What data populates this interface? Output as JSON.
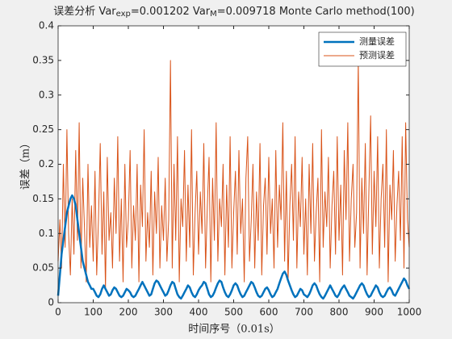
{
  "chart_data": {
    "type": "line",
    "title_parts": [
      "误差分析 Var",
      "exp",
      "=0.001202 Var",
      "M",
      "=0.009718 Monte Carlo method(100)"
    ],
    "xlabel": "时间序号（0.01s）",
    "ylabel": "误差（m）",
    "xlim": [
      0,
      1000
    ],
    "xticks": [
      0,
      100,
      200,
      300,
      400,
      500,
      600,
      700,
      800,
      900,
      1000
    ],
    "ylim": [
      0,
      0.4
    ],
    "yticks": [
      0,
      0.05,
      0.1,
      0.15,
      0.2,
      0.25,
      0.3,
      0.35,
      0.4
    ],
    "grid": false,
    "legend": "northeast",
    "x": [
      0,
      5,
      10,
      15,
      20,
      25,
      30,
      35,
      40,
      45,
      50,
      55,
      60,
      65,
      70,
      75,
      80,
      85,
      90,
      95,
      100,
      105,
      110,
      115,
      120,
      125,
      130,
      135,
      140,
      145,
      150,
      155,
      160,
      165,
      170,
      175,
      180,
      185,
      190,
      195,
      200,
      205,
      210,
      215,
      220,
      225,
      230,
      235,
      240,
      245,
      250,
      255,
      260,
      265,
      270,
      275,
      280,
      285,
      290,
      295,
      300,
      305,
      310,
      315,
      320,
      325,
      330,
      335,
      340,
      345,
      350,
      355,
      360,
      365,
      370,
      375,
      380,
      385,
      390,
      395,
      400,
      405,
      410,
      415,
      420,
      425,
      430,
      435,
      440,
      445,
      450,
      455,
      460,
      465,
      470,
      475,
      480,
      485,
      490,
      495,
      500,
      505,
      510,
      515,
      520,
      525,
      530,
      535,
      540,
      545,
      550,
      555,
      560,
      565,
      570,
      575,
      580,
      585,
      590,
      595,
      600,
      605,
      610,
      615,
      620,
      625,
      630,
      635,
      640,
      645,
      650,
      655,
      660,
      665,
      670,
      675,
      680,
      685,
      690,
      695,
      700,
      705,
      710,
      715,
      720,
      725,
      730,
      735,
      740,
      745,
      750,
      755,
      760,
      765,
      770,
      775,
      780,
      785,
      790,
      795,
      800,
      805,
      810,
      815,
      820,
      825,
      830,
      835,
      840,
      845,
      850,
      855,
      860,
      865,
      870,
      875,
      880,
      885,
      890,
      895,
      900,
      905,
      910,
      915,
      920,
      925,
      930,
      935,
      940,
      945,
      950,
      955,
      960,
      965,
      970,
      975,
      980,
      985,
      990,
      995,
      1000
    ],
    "series": [
      {
        "name": "测量误差",
        "color": "#0072BD",
        "width": 2.5,
        "values": [
          0.01,
          0.04,
          0.07,
          0.09,
          0.11,
          0.13,
          0.14,
          0.15,
          0.155,
          0.15,
          0.14,
          0.12,
          0.1,
          0.08,
          0.06,
          0.05,
          0.04,
          0.03,
          0.025,
          0.02,
          0.02,
          0.015,
          0.01,
          0.008,
          0.012,
          0.02,
          0.025,
          0.02,
          0.015,
          0.01,
          0.012,
          0.018,
          0.022,
          0.02,
          0.015,
          0.01,
          0.008,
          0.01,
          0.015,
          0.02,
          0.018,
          0.015,
          0.01,
          0.008,
          0.01,
          0.015,
          0.02,
          0.025,
          0.03,
          0.025,
          0.02,
          0.015,
          0.01,
          0.012,
          0.02,
          0.028,
          0.032,
          0.03,
          0.025,
          0.02,
          0.015,
          0.01,
          0.012,
          0.018,
          0.025,
          0.03,
          0.028,
          0.02,
          0.012,
          0.008,
          0.006,
          0.01,
          0.015,
          0.02,
          0.025,
          0.022,
          0.015,
          0.01,
          0.008,
          0.012,
          0.018,
          0.022,
          0.025,
          0.03,
          0.028,
          0.02,
          0.012,
          0.008,
          0.01,
          0.015,
          0.022,
          0.028,
          0.032,
          0.03,
          0.022,
          0.015,
          0.01,
          0.008,
          0.012,
          0.018,
          0.025,
          0.028,
          0.025,
          0.018,
          0.012,
          0.008,
          0.01,
          0.015,
          0.02,
          0.025,
          0.03,
          0.028,
          0.022,
          0.015,
          0.01,
          0.008,
          0.01,
          0.015,
          0.02,
          0.022,
          0.018,
          0.012,
          0.008,
          0.01,
          0.015,
          0.02,
          0.028,
          0.035,
          0.042,
          0.045,
          0.04,
          0.032,
          0.025,
          0.018,
          0.012,
          0.008,
          0.01,
          0.015,
          0.02,
          0.018,
          0.012,
          0.01,
          0.008,
          0.012,
          0.018,
          0.025,
          0.028,
          0.025,
          0.018,
          0.012,
          0.008,
          0.006,
          0.01,
          0.015,
          0.02,
          0.025,
          0.02,
          0.015,
          0.01,
          0.008,
          0.012,
          0.018,
          0.022,
          0.025,
          0.02,
          0.015,
          0.01,
          0.008,
          0.006,
          0.01,
          0.015,
          0.02,
          0.025,
          0.028,
          0.025,
          0.018,
          0.012,
          0.008,
          0.01,
          0.015,
          0.02,
          0.025,
          0.022,
          0.015,
          0.01,
          0.008,
          0.01,
          0.015,
          0.02,
          0.022,
          0.018,
          0.012,
          0.01,
          0.015,
          0.02,
          0.025,
          0.03,
          0.035,
          0.032,
          0.025,
          0.02
        ]
      },
      {
        "name": "预测误差",
        "color": "#D95319",
        "width": 1,
        "values": [
          0.06,
          0.12,
          0.05,
          0.2,
          0.08,
          0.25,
          0.1,
          0.04,
          0.15,
          0.07,
          0.22,
          0.09,
          0.26,
          0.05,
          0.18,
          0.11,
          0.03,
          0.2,
          0.08,
          0.14,
          0.06,
          0.19,
          0.04,
          0.12,
          0.23,
          0.07,
          0.16,
          0.02,
          0.21,
          0.09,
          0.13,
          0.05,
          0.18,
          0.1,
          0.24,
          0.06,
          0.15,
          0.03,
          0.2,
          0.08,
          0.12,
          0.22,
          0.05,
          0.14,
          0.09,
          0.2,
          0.03,
          0.17,
          0.11,
          0.25,
          0.06,
          0.13,
          0.08,
          0.19,
          0.04,
          0.16,
          0.1,
          0.21,
          0.05,
          0.14,
          0.09,
          0.18,
          0.06,
          0.12,
          0.35,
          0.05,
          0.2,
          0.09,
          0.24,
          0.03,
          0.15,
          0.11,
          0.22,
          0.06,
          0.17,
          0.08,
          0.25,
          0.04,
          0.13,
          0.19,
          0.07,
          0.16,
          0.1,
          0.23,
          0.05,
          0.14,
          0.21,
          0.03,
          0.18,
          0.09,
          0.26,
          0.06,
          0.15,
          0.11,
          0.2,
          0.04,
          0.17,
          0.08,
          0.24,
          0.05,
          0.13,
          0.19,
          0.07,
          0.22,
          0.1,
          0.15,
          0.03,
          0.18,
          0.24,
          0.06,
          0.12,
          0.2,
          0.05,
          0.16,
          0.09,
          0.23,
          0.04,
          0.14,
          0.18,
          0.07,
          0.21,
          0.1,
          0.15,
          0.05,
          0.22,
          0.08,
          0.17,
          0.12,
          0.26,
          0.06,
          0.19,
          0.03,
          0.14,
          0.2,
          0.09,
          0.24,
          0.05,
          0.16,
          0.11,
          0.21,
          0.07,
          0.15,
          0.04,
          0.2,
          0.1,
          0.23,
          0.06,
          0.13,
          0.18,
          0.03,
          0.25,
          0.08,
          0.16,
          0.11,
          0.21,
          0.05,
          0.14,
          0.19,
          0.07,
          0.24,
          0.09,
          0.17,
          0.04,
          0.22,
          0.12,
          0.26,
          0.06,
          0.15,
          0.2,
          0.08,
          0.13,
          0.35,
          0.05,
          0.18,
          0.1,
          0.23,
          0.04,
          0.16,
          0.27,
          0.07,
          0.19,
          0.11,
          0.24,
          0.05,
          0.15,
          0.2,
          0.08,
          0.25,
          0.03,
          0.17,
          0.12,
          0.22,
          0.06,
          0.14,
          0.19,
          0.09,
          0.24,
          0.05,
          0.26,
          0.12,
          0.08
        ]
      }
    ]
  }
}
